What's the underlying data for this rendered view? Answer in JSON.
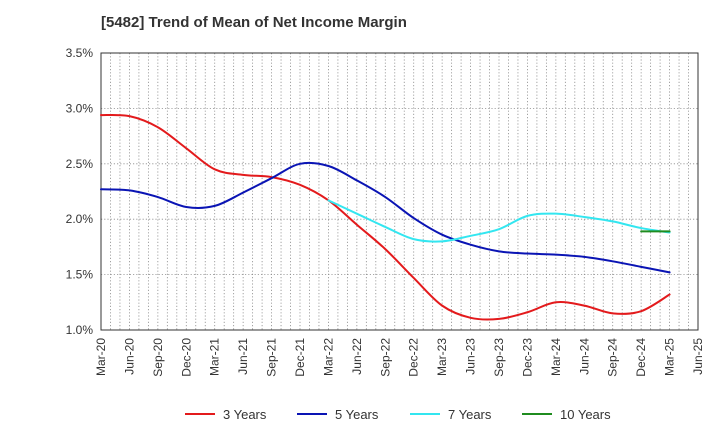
{
  "chart_data": {
    "type": "line",
    "title": "[5482]  Trend of Mean of Net Income Margin",
    "xlabel": "",
    "ylabel": "",
    "x_ticks": [
      "Mar-20",
      "Jun-20",
      "Sep-20",
      "Dec-20",
      "Mar-21",
      "Jun-21",
      "Sep-21",
      "Dec-21",
      "Mar-22",
      "Jun-22",
      "Sep-22",
      "Dec-22",
      "Mar-23",
      "Jun-23",
      "Sep-23",
      "Dec-23",
      "Mar-24",
      "Jun-24",
      "Sep-24",
      "Dec-24",
      "Mar-25",
      "Jun-25"
    ],
    "y_ticks": [
      "1.0%",
      "1.5%",
      "2.0%",
      "2.5%",
      "3.0%",
      "3.5%"
    ],
    "ylim": [
      1.0,
      3.5
    ],
    "y_unit": "%",
    "grid": true,
    "legend_position": "bottom",
    "series": [
      {
        "name": "3 Years",
        "color": "#e31a1c",
        "x": [
          "Mar-20",
          "Jun-20",
          "Sep-20",
          "Dec-20",
          "Mar-21",
          "Jun-21",
          "Sep-21",
          "Dec-21",
          "Mar-22",
          "Jun-22",
          "Sep-22",
          "Dec-22",
          "Mar-23",
          "Jun-23",
          "Sep-23",
          "Dec-23",
          "Mar-24",
          "Jun-24",
          "Sep-24",
          "Dec-24",
          "Mar-25"
        ],
        "values": [
          2.94,
          2.93,
          2.83,
          2.64,
          2.45,
          2.4,
          2.38,
          2.31,
          2.17,
          1.95,
          1.73,
          1.47,
          1.22,
          1.11,
          1.1,
          1.16,
          1.25,
          1.22,
          1.15,
          1.17,
          1.32
        ]
      },
      {
        "name": "5 Years",
        "color": "#0a14b4",
        "x": [
          "Mar-20",
          "Jun-20",
          "Sep-20",
          "Dec-20",
          "Mar-21",
          "Jun-21",
          "Sep-21",
          "Dec-21",
          "Mar-22",
          "Jun-22",
          "Sep-22",
          "Dec-22",
          "Mar-23",
          "Jun-23",
          "Sep-23",
          "Dec-23",
          "Mar-24",
          "Jun-24",
          "Sep-24",
          "Dec-24",
          "Mar-25"
        ],
        "values": [
          2.27,
          2.26,
          2.2,
          2.11,
          2.12,
          2.24,
          2.37,
          2.5,
          2.48,
          2.35,
          2.2,
          2.01,
          1.86,
          1.77,
          1.71,
          1.69,
          1.68,
          1.66,
          1.62,
          1.57,
          1.52
        ]
      },
      {
        "name": "7 Years",
        "color": "#33e6f0",
        "x": [
          "Mar-22",
          "Jun-22",
          "Sep-22",
          "Dec-22",
          "Mar-23",
          "Jun-23",
          "Sep-23",
          "Dec-23",
          "Mar-24",
          "Jun-24",
          "Sep-24",
          "Dec-24",
          "Mar-25"
        ],
        "values": [
          2.17,
          2.05,
          1.93,
          1.82,
          1.8,
          1.85,
          1.91,
          2.03,
          2.05,
          2.02,
          1.98,
          1.92,
          1.88
        ]
      },
      {
        "name": "10 Years",
        "color": "#1f8c1f",
        "x": [
          "Dec-24",
          "Mar-25"
        ],
        "values": [
          1.89,
          1.89
        ]
      }
    ]
  }
}
